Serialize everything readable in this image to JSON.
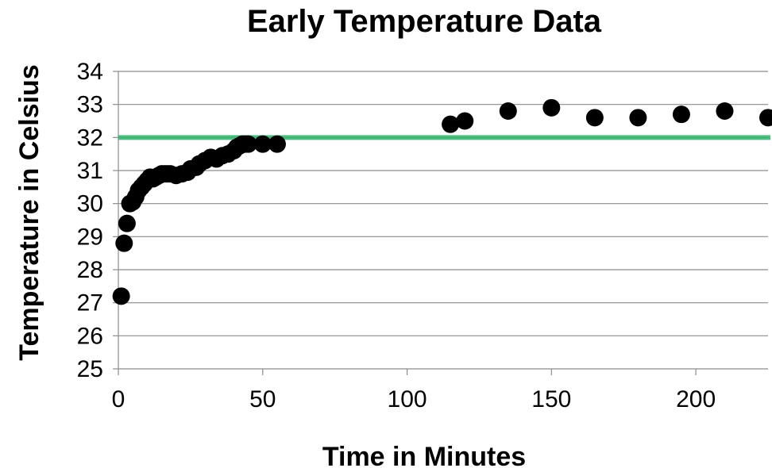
{
  "chart_data": {
    "type": "scatter",
    "title": "Early Temperature Data",
    "xlabel": "Time in Minutes",
    "ylabel": "Temperature in Celsius",
    "xlim": [
      0,
      225
    ],
    "ylim": [
      25,
      34
    ],
    "x_ticks": [
      "0",
      "50",
      "100",
      "150",
      "200"
    ],
    "y_ticks": [
      "25",
      "26",
      "27",
      "28",
      "29",
      "30",
      "31",
      "32",
      "33",
      "34"
    ],
    "grid": true,
    "legend": "none",
    "reference_line": {
      "y": 32,
      "color": "#2fb36a"
    },
    "series": [
      {
        "color": "#000000",
        "points": [
          [
            1,
            27.2
          ],
          [
            2,
            28.8
          ],
          [
            3,
            29.4
          ],
          [
            4,
            30.0
          ],
          [
            5,
            30.05
          ],
          [
            6,
            30.2
          ],
          [
            7,
            30.4
          ],
          [
            8,
            30.5
          ],
          [
            9,
            30.6
          ],
          [
            10,
            30.7
          ],
          [
            11,
            30.8
          ],
          [
            12,
            30.75
          ],
          [
            13,
            30.8
          ],
          [
            14,
            30.85
          ],
          [
            15,
            30.9
          ],
          [
            16,
            30.9
          ],
          [
            17,
            30.9
          ],
          [
            18,
            30.9
          ],
          [
            20,
            30.85
          ],
          [
            22,
            30.9
          ],
          [
            24,
            30.95
          ],
          [
            25,
            31.05
          ],
          [
            27,
            31.1
          ],
          [
            28,
            31.2
          ],
          [
            30,
            31.3
          ],
          [
            32,
            31.4
          ],
          [
            34,
            31.35
          ],
          [
            36,
            31.45
          ],
          [
            38,
            31.5
          ],
          [
            40,
            31.6
          ],
          [
            41,
            31.7
          ],
          [
            42,
            31.75
          ],
          [
            43,
            31.8
          ],
          [
            44,
            31.8
          ],
          [
            45,
            31.8
          ],
          [
            50,
            31.8
          ],
          [
            55,
            31.8
          ],
          [
            115,
            32.4
          ],
          [
            120,
            32.5
          ],
          [
            135,
            32.8
          ],
          [
            150,
            32.9
          ],
          [
            165,
            32.6
          ],
          [
            180,
            32.6
          ],
          [
            195,
            32.7
          ],
          [
            210,
            32.8
          ],
          [
            225,
            32.6
          ]
        ]
      }
    ]
  }
}
